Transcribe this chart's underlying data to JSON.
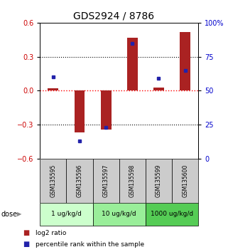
{
  "title": "GDS2924 / 8786",
  "samples": [
    "GSM135595",
    "GSM135596",
    "GSM135597",
    "GSM135598",
    "GSM135599",
    "GSM135600"
  ],
  "log2_ratio": [
    0.02,
    -0.37,
    -0.34,
    0.47,
    0.03,
    0.52
  ],
  "percentile_rank": [
    60,
    13,
    23,
    85,
    59,
    65
  ],
  "ylim_left": [
    -0.6,
    0.6
  ],
  "ylim_right": [
    0,
    100
  ],
  "yticks_left": [
    -0.6,
    -0.3,
    0.0,
    0.3,
    0.6
  ],
  "yticks_right": [
    0,
    25,
    50,
    75,
    100
  ],
  "ytick_labels_right": [
    "0",
    "25",
    "50",
    "75",
    "100%"
  ],
  "hlines_black": [
    0.3,
    -0.3
  ],
  "hline_red": 0.0,
  "bar_color": "#aa2222",
  "dot_color": "#2222aa",
  "dose_groups": [
    {
      "label": "1 ug/kg/d",
      "samples": [
        0,
        1
      ],
      "color": "#ccffcc"
    },
    {
      "label": "10 ug/kg/d",
      "samples": [
        2,
        3
      ],
      "color": "#99ee99"
    },
    {
      "label": "1000 ug/kg/d",
      "samples": [
        4,
        5
      ],
      "color": "#55cc55"
    }
  ],
  "dose_label": "dose",
  "legend_red": "log2 ratio",
  "legend_blue": "percentile rank within the sample",
  "sample_bg_color": "#cccccc",
  "title_fontsize": 10,
  "axis_color_left": "#cc0000",
  "axis_color_right": "#0000cc",
  "bar_width": 0.4
}
